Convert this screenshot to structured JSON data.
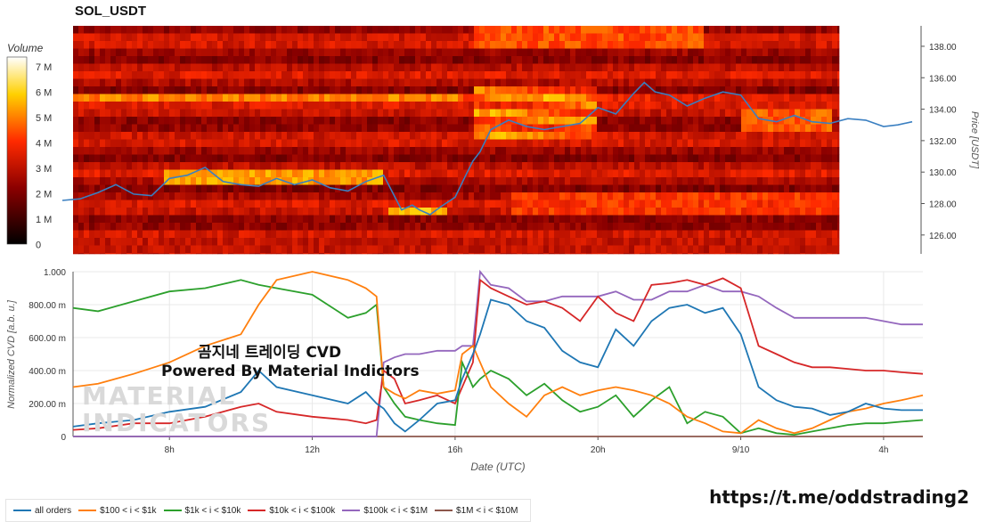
{
  "title": "SOL_USDT",
  "overlay_title": "곰지네 트레이딩 CVD",
  "overlay_subtitle": "Powered By Material Indictors",
  "footer_url": "https://t.me/oddstrading2",
  "watermark": [
    "MATERIAL",
    "INDICATORS"
  ],
  "colorbar": {
    "title": "Volume",
    "ticks": [
      "7 M",
      "6 M",
      "5 M",
      "4 M",
      "3 M",
      "2 M",
      "1 M",
      "0"
    ]
  },
  "chart_data": [
    {
      "type": "heatmap",
      "title": "SOL_USDT",
      "ylabel": "Price [USDT]",
      "y_ticks": [
        "138.00",
        "136.00",
        "134.00",
        "132.00",
        "130.00",
        "128.00",
        "126.00"
      ],
      "ylim": [
        124.8,
        139.3
      ],
      "price_line": {
        "color": "#3a7fc1",
        "x_hours": [
          5.0,
          5.5,
          6.0,
          6.5,
          7.0,
          7.5,
          8.0,
          8.5,
          9.0,
          9.5,
          10.0,
          10.5,
          11.0,
          11.5,
          12.0,
          12.5,
          13.0,
          13.5,
          14.0,
          14.5,
          14.8,
          15.0,
          15.3,
          15.6,
          16.0,
          16.3,
          16.5,
          16.7,
          17.0,
          17.5,
          18.0,
          18.5,
          19.0,
          19.5,
          20.0,
          20.5,
          21.0,
          21.3,
          21.6,
          22.0,
          22.5,
          23.0,
          23.5,
          24.0,
          24.5,
          25.0,
          25.5,
          26.0,
          26.5,
          27.0,
          27.5,
          28.0,
          28.4,
          28.8
        ],
        "y": [
          128.2,
          128.3,
          128.7,
          129.2,
          128.6,
          128.5,
          129.6,
          129.8,
          130.3,
          129.4,
          129.2,
          129.1,
          129.6,
          129.2,
          129.5,
          129.0,
          128.8,
          129.4,
          129.8,
          127.6,
          127.9,
          127.6,
          127.3,
          127.8,
          128.4,
          129.8,
          130.7,
          131.3,
          132.7,
          133.3,
          132.9,
          132.7,
          132.9,
          133.1,
          134.1,
          133.7,
          135.0,
          135.7,
          135.1,
          134.9,
          134.2,
          134.7,
          135.1,
          134.9,
          133.4,
          133.2,
          133.6,
          133.2,
          133.1,
          133.4,
          133.3,
          132.9,
          133.0,
          133.2
        ]
      }
    },
    {
      "type": "line",
      "xlabel": "Date (UTC)",
      "ylabel": "Normalized CVD [a.b. u.]",
      "x_ticks": [
        "8h",
        "12h",
        "16h",
        "20h",
        "9/10",
        "4h"
      ],
      "x_tick_hours": [
        8,
        12,
        16,
        20,
        24,
        28
      ],
      "xlim": [
        5.3,
        29.1
      ],
      "y_ticks": [
        "1.000",
        "800.00 m",
        "600.00 m",
        "400.00 m",
        "200.00 m",
        "0"
      ],
      "ylim": [
        0,
        1.0
      ],
      "x_hours": [
        5.3,
        6.0,
        7.0,
        8.0,
        9.0,
        10.0,
        10.5,
        11.0,
        12.0,
        13.0,
        13.5,
        13.8,
        14.0,
        14.3,
        14.6,
        15.0,
        15.5,
        16.0,
        16.2,
        16.5,
        16.7,
        17.0,
        17.5,
        18.0,
        18.5,
        19.0,
        19.5,
        20.0,
        20.5,
        21.0,
        21.5,
        22.0,
        22.5,
        23.0,
        23.5,
        24.0,
        24.5,
        25.0,
        25.5,
        26.0,
        26.5,
        27.0,
        27.5,
        28.0,
        28.5,
        29.1
      ],
      "series": [
        {
          "name": "all orders",
          "color": "#1f77b4",
          "values": [
            0.06,
            0.08,
            0.1,
            0.15,
            0.18,
            0.27,
            0.4,
            0.3,
            0.25,
            0.2,
            0.27,
            0.2,
            0.17,
            0.08,
            0.03,
            0.1,
            0.2,
            0.22,
            0.35,
            0.5,
            0.62,
            0.83,
            0.8,
            0.7,
            0.66,
            0.52,
            0.45,
            0.42,
            0.65,
            0.55,
            0.7,
            0.78,
            0.8,
            0.75,
            0.78,
            0.62,
            0.3,
            0.22,
            0.18,
            0.17,
            0.13,
            0.15,
            0.2,
            0.17,
            0.16,
            0.16
          ]
        },
        {
          "name": "$100 < i < $1k",
          "color": "#ff7f0e",
          "values": [
            0.3,
            0.32,
            0.38,
            0.45,
            0.55,
            0.62,
            0.8,
            0.95,
            1.0,
            0.95,
            0.9,
            0.85,
            0.3,
            0.26,
            0.23,
            0.28,
            0.26,
            0.28,
            0.5,
            0.55,
            0.45,
            0.3,
            0.2,
            0.12,
            0.25,
            0.3,
            0.25,
            0.28,
            0.3,
            0.28,
            0.25,
            0.2,
            0.12,
            0.08,
            0.03,
            0.02,
            0.1,
            0.05,
            0.02,
            0.05,
            0.1,
            0.15,
            0.17,
            0.2,
            0.22,
            0.25
          ]
        },
        {
          "name": "$1k < i < $10k",
          "color": "#2ca02c",
          "values": [
            0.78,
            0.76,
            0.82,
            0.88,
            0.9,
            0.95,
            0.92,
            0.9,
            0.86,
            0.72,
            0.75,
            0.8,
            0.3,
            0.2,
            0.12,
            0.1,
            0.08,
            0.07,
            0.45,
            0.3,
            0.35,
            0.4,
            0.35,
            0.25,
            0.32,
            0.22,
            0.15,
            0.18,
            0.25,
            0.12,
            0.22,
            0.3,
            0.08,
            0.15,
            0.12,
            0.02,
            0.05,
            0.02,
            0.01,
            0.03,
            0.05,
            0.07,
            0.08,
            0.08,
            0.09,
            0.1
          ]
        },
        {
          "name": "$10k < i < $100k",
          "color": "#d62728",
          "values": [
            0.04,
            0.05,
            0.08,
            0.08,
            0.12,
            0.18,
            0.2,
            0.15,
            0.12,
            0.1,
            0.08,
            0.1,
            0.4,
            0.35,
            0.2,
            0.22,
            0.25,
            0.2,
            0.3,
            0.45,
            0.95,
            0.9,
            0.85,
            0.8,
            0.82,
            0.78,
            0.7,
            0.85,
            0.75,
            0.7,
            0.92,
            0.93,
            0.95,
            0.92,
            0.96,
            0.9,
            0.55,
            0.5,
            0.45,
            0.42,
            0.42,
            0.41,
            0.4,
            0.4,
            0.39,
            0.38
          ]
        },
        {
          "name": "$100k < i < $1M",
          "color": "#9467bd",
          "values": [
            0.0,
            0.0,
            0.0,
            0.0,
            0.0,
            0.0,
            0.0,
            0.0,
            0.0,
            0.0,
            0.0,
            0.0,
            0.45,
            0.48,
            0.5,
            0.5,
            0.52,
            0.52,
            0.55,
            0.55,
            1.0,
            0.92,
            0.9,
            0.82,
            0.82,
            0.85,
            0.85,
            0.85,
            0.88,
            0.83,
            0.83,
            0.88,
            0.88,
            0.92,
            0.88,
            0.88,
            0.85,
            0.78,
            0.72,
            0.72,
            0.72,
            0.72,
            0.72,
            0.7,
            0.68,
            0.68
          ]
        },
        {
          "name": "$1M < i < $10M",
          "color": "#8c564b",
          "values": [
            0.0,
            0.0,
            0.0,
            0.0,
            0.0,
            0.0,
            0.0,
            0.0,
            0.0,
            0.0,
            0.0,
            0.0,
            0.0,
            0.0,
            0.0,
            0.0,
            0.0,
            0.0,
            0.0,
            0.0,
            0.0,
            0.0,
            0.0,
            0.0,
            0.0,
            0.0,
            0.0,
            0.0,
            0.0,
            0.0,
            0.0,
            0.0,
            0.0,
            0.0,
            0.0,
            0.0,
            0.0,
            0.0,
            0.0,
            0.0,
            0.0,
            0.0,
            0.0,
            0.0,
            0.0,
            0.0
          ]
        }
      ]
    }
  ]
}
